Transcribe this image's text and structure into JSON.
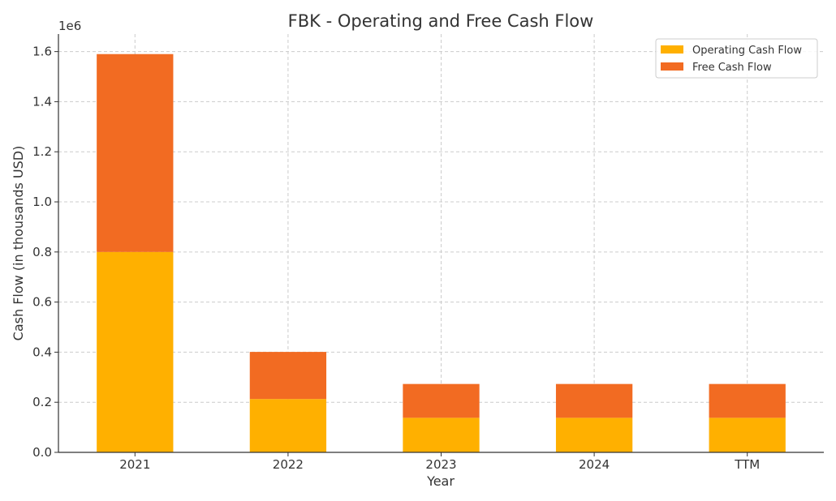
{
  "chart_data": {
    "type": "bar",
    "stacked": true,
    "title": "FBK - Operating and Free Cash Flow",
    "xlabel": "Year",
    "ylabel": "Cash Flow (in thousands USD)",
    "y_offset_label": "1e6",
    "categories": [
      "2021",
      "2022",
      "2023",
      "2024",
      "TTM"
    ],
    "series": [
      {
        "name": "Operating Cash Flow",
        "color": "#FFB000",
        "values": [
          800000,
          213000,
          138000,
          138000,
          138000
        ]
      },
      {
        "name": "Free Cash Flow",
        "color": "#F26B22",
        "values": [
          790000,
          188000,
          135000,
          135000,
          135000
        ]
      }
    ],
    "ylim": [
      0,
      1670000
    ],
    "yticks": [
      0,
      200000,
      400000,
      600000,
      800000,
      1000000,
      1200000,
      1400000,
      1600000
    ],
    "ytick_labels": [
      "0.0",
      "0.2",
      "0.4",
      "0.6",
      "0.8",
      "1.0",
      "1.2",
      "1.4",
      "1.6"
    ],
    "grid": true,
    "legend_position": "top-right"
  }
}
